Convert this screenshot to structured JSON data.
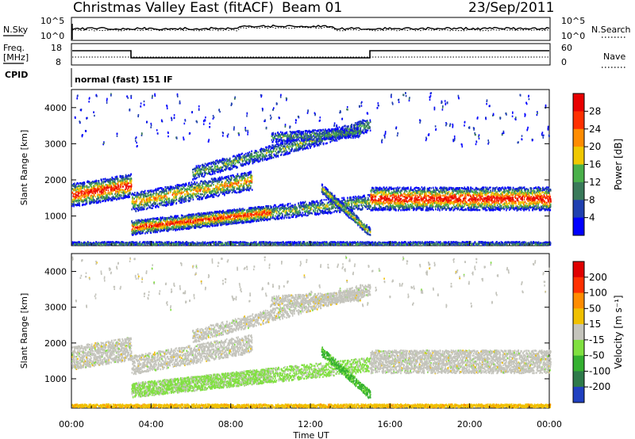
{
  "header": {
    "station": "Christmas Valley East (fitACF)",
    "beam": "Beam 01",
    "date": "23/Sep/2011"
  },
  "panels": {
    "nsky_label": "N.Sky",
    "nsearch_label": "N.Search",
    "nsky_ticks": [
      "10^5",
      "10^0"
    ],
    "nsearch_ticks": [
      "10^5",
      "10^0"
    ],
    "freq_label_1": "Freq.",
    "freq_label_2": "[MHz]",
    "freq_ticks": [
      "18",
      "8"
    ],
    "nave_label": "Nave",
    "nave_ticks": [
      "60",
      "0"
    ],
    "cpid_label": "CPID",
    "cpid_text": "normal (fast) 151 IF"
  },
  "chart_data": [
    {
      "type": "heatmap",
      "name": "Power",
      "ylabel": "Slant Range [km]",
      "xlabel": "Time UT",
      "x_ticks": [
        "00:00",
        "04:00",
        "08:00",
        "12:00",
        "16:00",
        "20:00",
        "00:00"
      ],
      "y_ticks": [
        1000,
        2000,
        3000,
        4000
      ],
      "ylim": [
        180,
        4500
      ],
      "xlim_hours": [
        0,
        24
      ],
      "colorbar": {
        "title": "Power [dB]",
        "ticks": [
          "4",
          "8",
          "12",
          "16",
          "20",
          "24",
          "28"
        ],
        "colors": [
          "#0000ff",
          "#2040b0",
          "#3a7a5a",
          "#4ab04a",
          "#f0c800",
          "#ff8c00",
          "#ff3000",
          "#e80000"
        ]
      }
    },
    {
      "type": "heatmap",
      "name": "Velocity",
      "ylabel": "Slant Range [km]",
      "xlabel": "Time UT",
      "x_ticks": [
        "00:00",
        "04:00",
        "08:00",
        "12:00",
        "16:00",
        "20:00",
        "00:00"
      ],
      "y_ticks": [
        1000,
        2000,
        3000,
        4000
      ],
      "ylim": [
        180,
        4500
      ],
      "xlim_hours": [
        0,
        24
      ],
      "colorbar": {
        "title": "Velocity [m s⁻¹]",
        "ticks": [
          "200",
          "100",
          "50",
          "15",
          "-15",
          "-50",
          "-100",
          "-200"
        ],
        "colors": [
          "#2040c0",
          "#2e7a4a",
          "#34b030",
          "#80e040",
          "#c4c4bc",
          "#f0c000",
          "#ff8c00",
          "#ff3000",
          "#e00000"
        ]
      }
    }
  ]
}
